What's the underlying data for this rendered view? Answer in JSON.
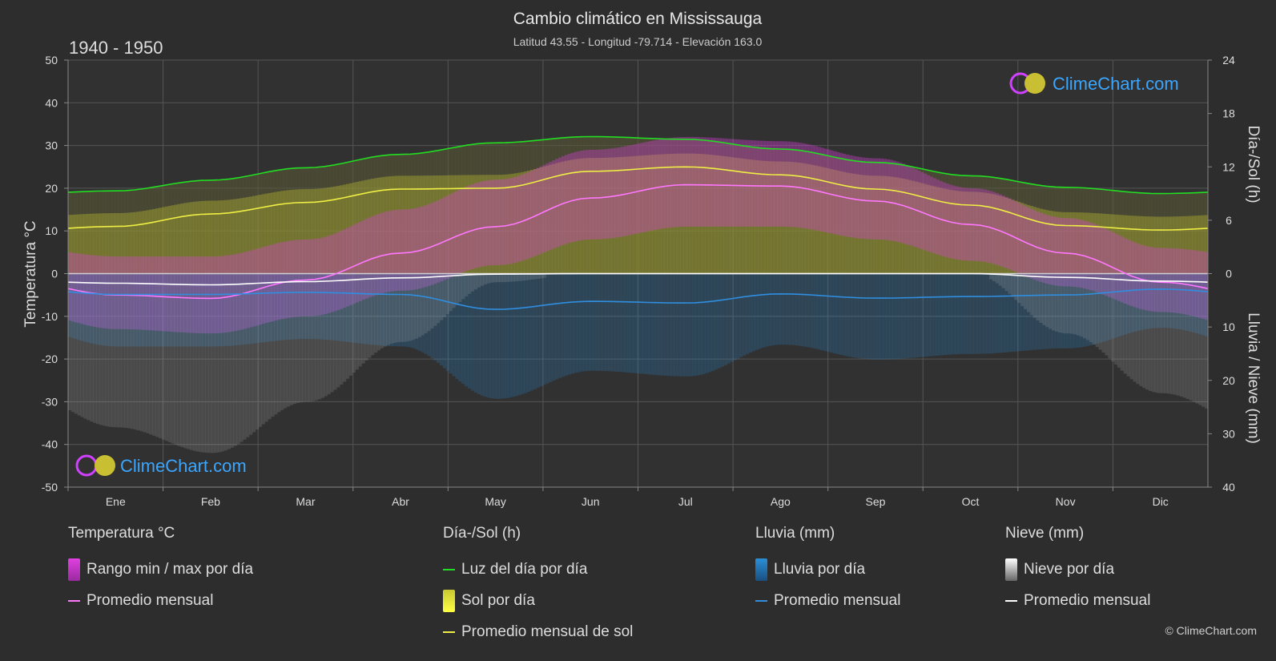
{
  "title": "Cambio climático en Mississauga",
  "subtitle": "Latitud 43.55 - Longitud -79.714 - Elevación 163.0",
  "period": "1940 - 1950",
  "brand": "ClimeChart.com",
  "copyright": "© ClimeChart.com",
  "colors": {
    "background": "#2d2d2d",
    "temp_range": "#e040e0",
    "temp_avg": "#ff77ff",
    "daylight": "#22dd22",
    "sunshine_fill": "#c8c832",
    "sunshine_avg": "#eeee44",
    "rain": "#2a8fd8",
    "rain_avg": "#2f8ee0",
    "snow": "#bbbbbb",
    "snow_avg": "#ffffff",
    "brand": "#3aa6ff"
  },
  "legend": {
    "temp": {
      "title": "Temperatura °C",
      "range": "Rango min / max por día",
      "avg": "Promedio mensual"
    },
    "sun": {
      "title": "Día-/Sol (h)",
      "daylight": "Luz del día por día",
      "sunshine": "Sol por día",
      "avg": "Promedio mensual de sol"
    },
    "rain": {
      "title": "Lluvia (mm)",
      "daily": "Lluvia por día",
      "avg": "Promedio mensual"
    },
    "snow": {
      "title": "Nieve (mm)",
      "daily": "Nieve por día",
      "avg": "Promedio mensual"
    }
  },
  "chart_data": {
    "type": "line",
    "categories": [
      "Ene",
      "Feb",
      "Mar",
      "Abr",
      "May",
      "Jun",
      "Jul",
      "Ago",
      "Sep",
      "Oct",
      "Nov",
      "Dic"
    ],
    "left_axis": {
      "label": "Temperatura °C",
      "range": [
        -50,
        50
      ],
      "ticks": [
        50,
        40,
        30,
        20,
        10,
        0,
        -10,
        -20,
        -30,
        -40,
        -50
      ]
    },
    "right_axis_top": {
      "label": "Día-/Sol (h)",
      "range": [
        0,
        24
      ],
      "ticks": [
        24,
        18,
        12,
        6,
        0
      ]
    },
    "right_axis_bottom": {
      "label": "Lluvia / Nieve (mm)",
      "range": [
        0,
        40
      ],
      "ticks": [
        0,
        10,
        20,
        30,
        40
      ]
    },
    "grid": true,
    "series": [
      {
        "name": "Luz del día por día",
        "axis": "sun_hours",
        "values": [
          9.3,
          10.5,
          11.9,
          13.4,
          14.7,
          15.4,
          15.1,
          14.0,
          12.5,
          11.0,
          9.7,
          9.0
        ]
      },
      {
        "name": "Promedio mensual de sol",
        "axis": "sun_hours",
        "values": [
          5.3,
          6.7,
          8.0,
          9.5,
          9.6,
          11.5,
          12.0,
          11.1,
          9.5,
          7.7,
          5.4,
          4.9
        ]
      },
      {
        "name": "Temperatura promedio mensual",
        "axis": "temp_c",
        "values": [
          -5.0,
          -5.8,
          -1.5,
          4.8,
          11.0,
          17.7,
          20.8,
          20.5,
          17.0,
          11.5,
          4.8,
          -2.0
        ]
      },
      {
        "name": "Temperatura máxima diaria",
        "axis": "temp_c",
        "values": [
          -1,
          -1,
          3,
          10,
          17,
          24,
          27,
          26,
          22,
          15,
          8,
          1
        ]
      },
      {
        "name": "Temperatura mínima diaria",
        "axis": "temp_c",
        "values": [
          -10,
          -11,
          -7,
          -1,
          5,
          11,
          14,
          14,
          11,
          6,
          0,
          -6
        ]
      },
      {
        "name": "Lluvia promedio mensual",
        "axis": "precip_mm",
        "values": [
          3.9,
          3.9,
          3.5,
          3.9,
          6.7,
          5.2,
          5.5,
          3.8,
          4.6,
          4.3,
          4.0,
          2.9
        ]
      },
      {
        "name": "Nieve promedio mensual",
        "axis": "precip_mm",
        "values": [
          1.8,
          2.1,
          1.5,
          0.8,
          0.1,
          0,
          0,
          0,
          0,
          0,
          0.7,
          1.4
        ]
      }
    ]
  }
}
